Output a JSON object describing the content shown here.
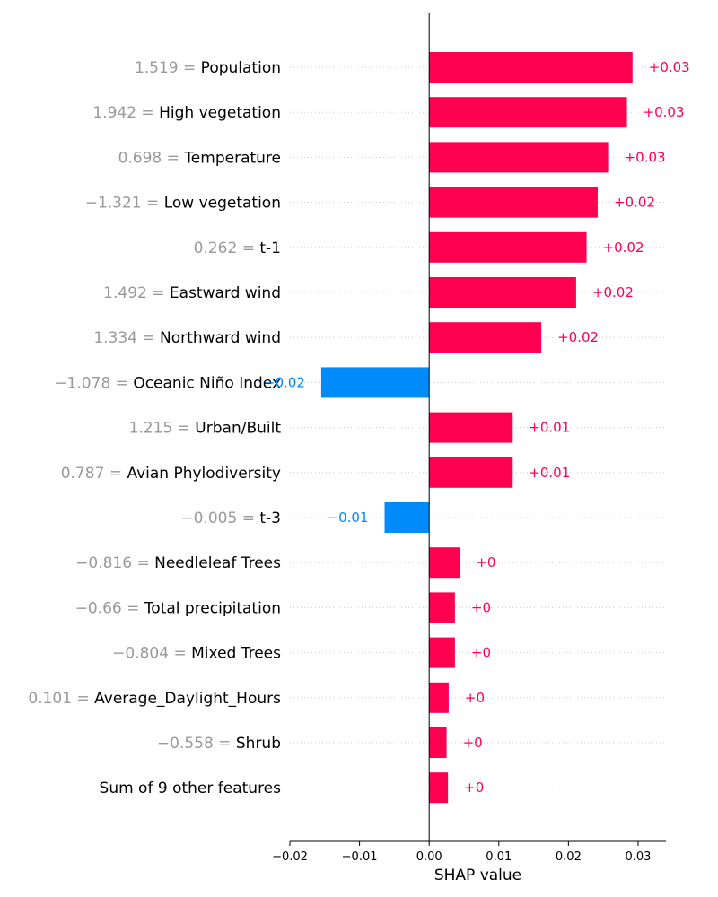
{
  "chart_data": {
    "type": "bar",
    "orientation": "horizontal",
    "xlabel": "SHAP value",
    "xlim": [
      -0.02,
      0.034
    ],
    "xticks": [
      -0.02,
      -0.01,
      0.0,
      0.01,
      0.02,
      0.03
    ],
    "xtick_labels": [
      "−0.02",
      "−0.01",
      "0.00",
      "0.01",
      "0.02",
      "0.03"
    ],
    "grid": "dotted horizontal row guides",
    "colors": {
      "positive": "#ff0051",
      "negative": "#008bfb",
      "feature_value": "#999999"
    },
    "features": [
      {
        "value": "1.519",
        "name": "Population",
        "shap": 0.0292,
        "label": "+0.03"
      },
      {
        "value": "1.942",
        "name": "High vegetation",
        "shap": 0.0284,
        "label": "+0.03"
      },
      {
        "value": "0.698",
        "name": "Temperature",
        "shap": 0.0257,
        "label": "+0.03"
      },
      {
        "value": "−1.321",
        "name": "Low vegetation",
        "shap": 0.0242,
        "label": "+0.02"
      },
      {
        "value": "0.262",
        "name": "t-1",
        "shap": 0.0226,
        "label": "+0.02"
      },
      {
        "value": "1.492",
        "name": "Eastward wind",
        "shap": 0.0211,
        "label": "+0.02"
      },
      {
        "value": "1.334",
        "name": "Northward wind",
        "shap": 0.0161,
        "label": "+0.02"
      },
      {
        "value": "−1.078",
        "name": "Oceanic Niño Index",
        "shap": -0.0155,
        "label": "−0.02"
      },
      {
        "value": "1.215",
        "name": "Urban/Built",
        "shap": 0.012,
        "label": "+0.01"
      },
      {
        "value": "0.787",
        "name": "Avian Phylodiversity",
        "shap": 0.012,
        "label": "+0.01"
      },
      {
        "value": "−0.005",
        "name": "t-3",
        "shap": -0.0064,
        "label": "−0.01"
      },
      {
        "value": "−0.816",
        "name": "Needleleaf Trees",
        "shap": 0.0044,
        "label": "+0"
      },
      {
        "value": "−0.66",
        "name": "Total precipitation",
        "shap": 0.0037,
        "label": "+0"
      },
      {
        "value": "−0.804",
        "name": "Mixed Trees",
        "shap": 0.0037,
        "label": "+0"
      },
      {
        "value": "0.101",
        "name": "Average_Daylight_Hours",
        "shap": 0.0028,
        "label": "+0"
      },
      {
        "value": "−0.558",
        "name": "Shrub",
        "shap": 0.0025,
        "label": "+0"
      },
      {
        "value": "",
        "name": "Sum of 9 other features",
        "shap": 0.0027,
        "label": "+0"
      }
    ]
  }
}
